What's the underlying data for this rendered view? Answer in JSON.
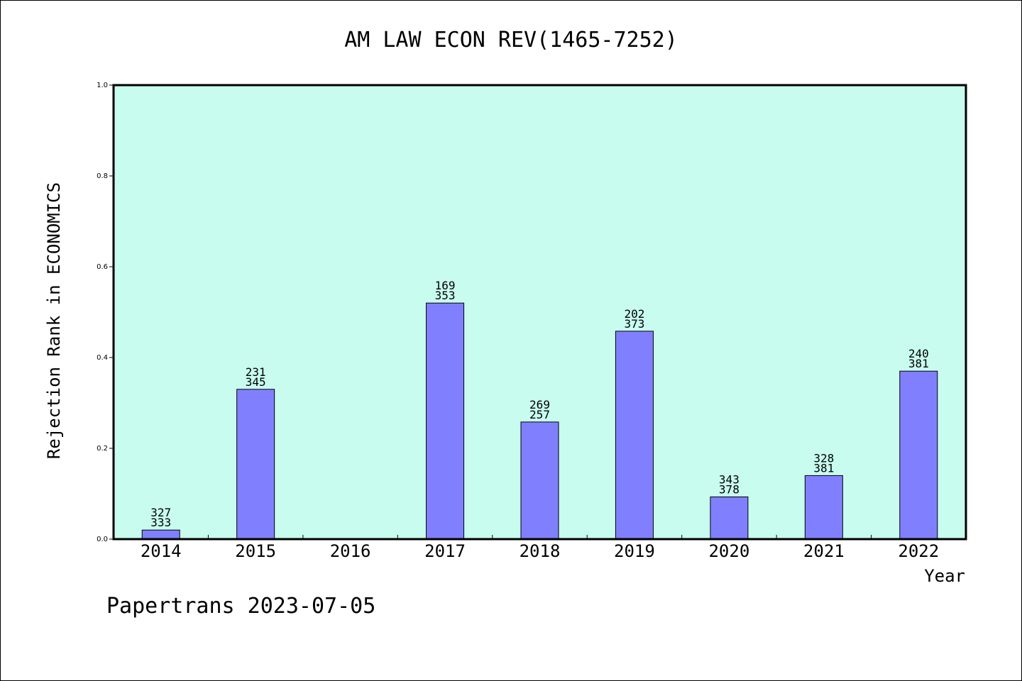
{
  "chart_data": {
    "type": "bar",
    "title": "AM LAW ECON REV(1465-7252)",
    "xlabel": "Year",
    "ylabel": "Rejection Rank in ECONOMICS",
    "ylim": [
      0,
      1.0
    ],
    "yticks": [
      "0.0",
      "0.2",
      "0.4",
      "0.6",
      "0.8",
      "1.0"
    ],
    "categories": [
      "2014",
      "2015",
      "2016",
      "2017",
      "2018",
      "2019",
      "2020",
      "2021",
      "2022"
    ],
    "values": [
      0.02,
      0.33,
      0,
      0.52,
      0.258,
      0.458,
      0.093,
      0.14,
      0.37
    ],
    "labels_top": [
      "327",
      "231",
      "",
      "169",
      "269",
      "202",
      "343",
      "328",
      "240"
    ],
    "labels_bottom": [
      "333",
      "345",
      "",
      "353",
      "257",
      "373",
      "378",
      "381",
      "381"
    ],
    "colors": {
      "plot_bg": "#c8fcee",
      "bar": "#8080ff"
    },
    "grid": false,
    "legend": "none"
  },
  "footer": "Papertrans 2023-07-05"
}
